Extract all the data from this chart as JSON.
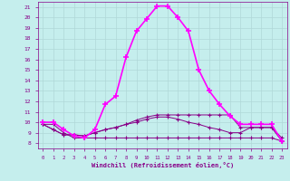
{
  "xlabel": "Windchill (Refroidissement éolien,°C)",
  "xlim": [
    -0.5,
    23.5
  ],
  "ylim": [
    7.5,
    21.5
  ],
  "xticks": [
    0,
    1,
    2,
    3,
    4,
    5,
    6,
    7,
    8,
    9,
    10,
    11,
    12,
    13,
    14,
    15,
    16,
    17,
    18,
    19,
    20,
    21,
    22,
    23
  ],
  "yticks": [
    8,
    9,
    10,
    11,
    12,
    13,
    14,
    15,
    16,
    17,
    18,
    19,
    20,
    21
  ],
  "bg_color": "#c5eeed",
  "grid_color": "#b0d8d8",
  "line_bright": "#ff00ff",
  "line_dark": "#880088",
  "hours": [
    0,
    1,
    2,
    3,
    4,
    5,
    6,
    7,
    8,
    9,
    10,
    11,
    12,
    13,
    14,
    15,
    16,
    17,
    18,
    19,
    20,
    21,
    22,
    23
  ],
  "temp_curve": [
    10.0,
    10.0,
    9.3,
    8.7,
    8.5,
    9.3,
    11.7,
    12.5,
    16.2,
    18.7,
    19.9,
    21.1,
    21.1,
    20.0,
    18.7,
    15.0,
    13.0,
    11.7,
    10.6,
    9.8,
    9.8,
    9.8,
    9.8,
    8.2
  ],
  "wc_flat1": [
    9.8,
    9.8,
    9.0,
    8.5,
    8.5,
    8.5,
    8.5,
    8.5,
    8.5,
    8.5,
    8.5,
    8.5,
    8.5,
    8.5,
    8.5,
    8.5,
    8.5,
    8.5,
    8.5,
    8.5,
    8.5,
    8.5,
    8.5,
    8.2
  ],
  "wc_flat2": [
    9.8,
    9.3,
    8.8,
    8.8,
    8.7,
    9.0,
    9.3,
    9.5,
    9.8,
    10.0,
    10.3,
    10.5,
    10.5,
    10.3,
    10.0,
    9.8,
    9.5,
    9.3,
    9.0,
    9.0,
    9.5,
    9.5,
    9.5,
    8.2
  ],
  "wc_flat3": [
    9.8,
    9.3,
    8.8,
    8.8,
    8.7,
    9.0,
    9.3,
    9.5,
    9.8,
    10.2,
    10.5,
    10.7,
    10.7,
    10.7,
    10.7,
    10.7,
    10.7,
    10.7,
    10.7,
    9.5,
    9.5,
    9.5,
    9.5,
    8.5
  ]
}
